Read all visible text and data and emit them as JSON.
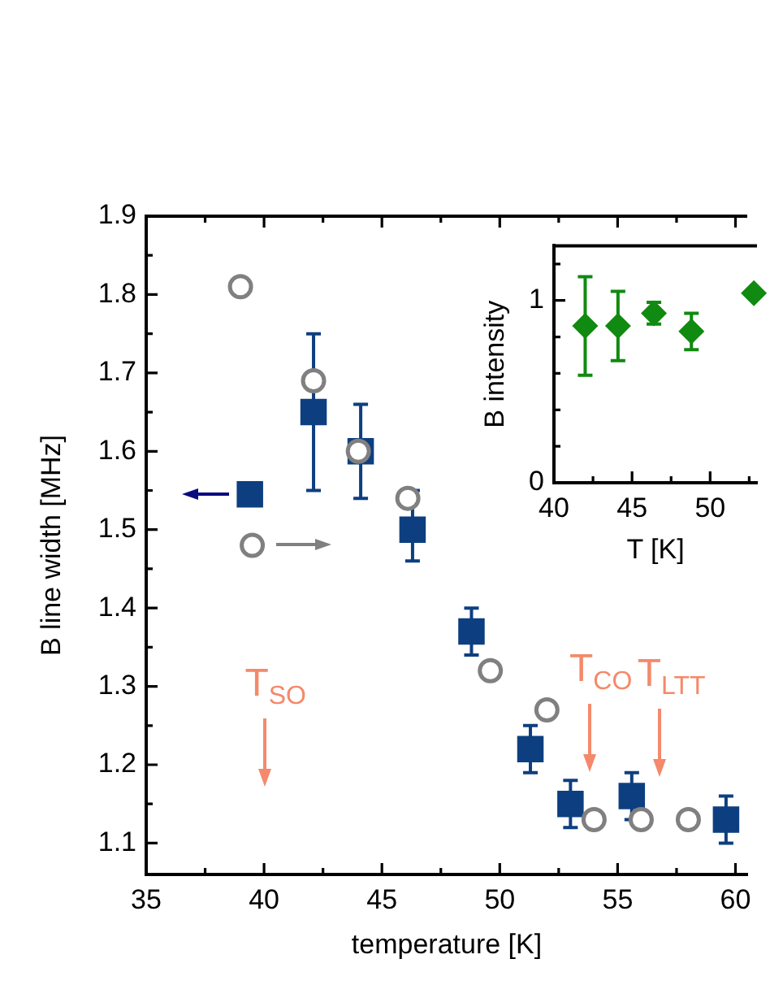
{
  "chart_data": [
    {
      "type": "scatter",
      "xlabel": "temperature [K]",
      "ylabel": "B line width [MHz]",
      "xlim": [
        35,
        60.5
      ],
      "ylim": [
        1.06,
        1.9
      ],
      "xticks": [
        35,
        {
          "value": 37.5,
          "label": null
        },
        40,
        {
          "value": 42.5,
          "label": null
        },
        45,
        {
          "value": 47.5,
          "label": null
        },
        50,
        {
          "value": 52.5,
          "label": null
        },
        55,
        {
          "value": 57.5,
          "label": null
        },
        60
      ],
      "yticks": [
        1.1,
        {
          "value": 1.15,
          "label": null
        },
        1.2,
        {
          "value": 1.25,
          "label": null
        },
        1.3,
        {
          "value": 1.35,
          "label": null
        },
        1.4,
        {
          "value": 1.45,
          "label": null
        },
        1.5,
        {
          "value": 1.55,
          "label": null
        },
        1.6,
        {
          "value": 1.65,
          "label": null
        },
        1.7,
        {
          "value": 1.75,
          "label": null
        },
        1.8,
        {
          "value": 1.85,
          "label": null
        },
        1.9
      ],
      "series": [
        {
          "marker": "square",
          "color": "#0d3f80",
          "x": [
            39.4,
            42.1,
            44.1,
            46.3,
            48.8,
            51.3,
            53.0,
            55.6,
            59.6
          ],
          "values": [
            1.545,
            1.65,
            1.6,
            1.5,
            1.37,
            1.22,
            1.15,
            1.16,
            1.13
          ],
          "errors": [
            null,
            [
              1.55,
              1.75
            ],
            [
              1.54,
              1.66
            ],
            [
              1.46,
              1.55
            ],
            [
              1.34,
              1.4
            ],
            [
              1.19,
              1.25
            ],
            [
              1.12,
              1.18
            ],
            [
              1.13,
              1.19
            ],
            [
              1.1,
              1.16
            ]
          ]
        },
        {
          "marker": "circle",
          "color": "#808080",
          "x": [
            39,
            39.5,
            42.1,
            44,
            46.1,
            49.6,
            52,
            54,
            56,
            58
          ],
          "values": [
            1.81,
            1.48,
            1.69,
            1.6,
            1.54,
            1.32,
            1.27,
            1.13,
            1.13,
            1.13
          ]
        }
      ],
      "annotations": [
        "T$_{SO}$",
        "T$_{CO}$",
        "T$_{LTT}$"
      ]
    },
    {
      "type": "scatter",
      "xlabel": "T [K]",
      "ylabel": "B intensity",
      "xlim": [
        40,
        53
      ],
      "ylim": [
        0,
        1.3
      ],
      "xticks": [
        40,
        {
          "value": 42.5,
          "label": null
        },
        45,
        {
          "value": 47.5,
          "label": null
        },
        50,
        {
          "value": 52.5,
          "label": null
        }
      ],
      "yticks": [
        0,
        {
          "value": 0.2,
          "label": null
        },
        {
          "value": 0.4,
          "label": null
        },
        {
          "value": 0.6,
          "label": null
        },
        {
          "value": 0.8,
          "label": null
        },
        1,
        {
          "value": 1.2,
          "label": null
        }
      ],
      "series": [
        {
          "marker": "diamond",
          "color": "#108a10",
          "x": [
            42,
            44.1,
            46.4,
            48.8,
            52.8
          ],
          "values": [
            0.86,
            0.86,
            0.93,
            0.83,
            1.04
          ],
          "errors": [
            [
              0.59,
              1.13
            ],
            [
              0.67,
              1.05
            ],
            [
              0.87,
              0.99
            ],
            [
              0.73,
              0.93
            ],
            null
          ]
        }
      ]
    }
  ]
}
